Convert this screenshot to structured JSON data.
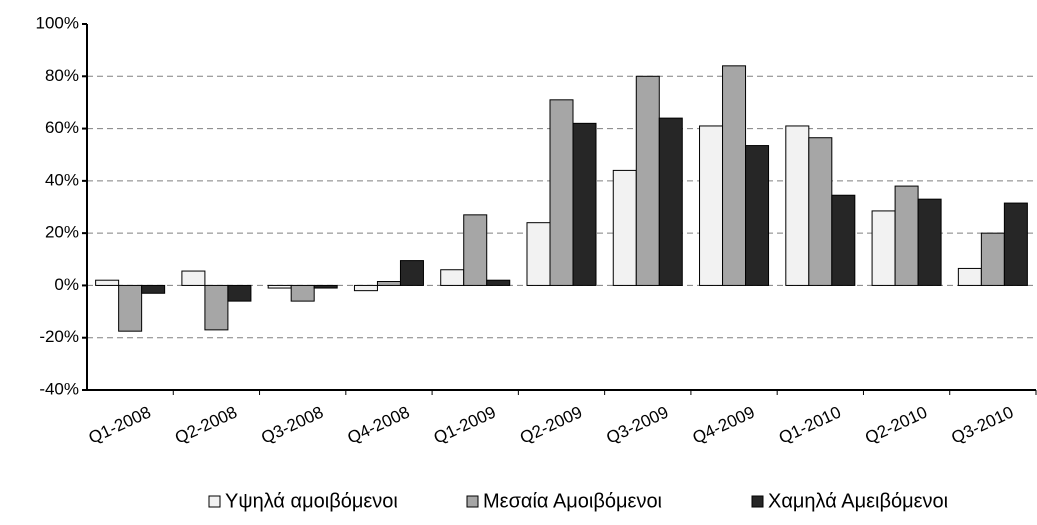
{
  "chart_data": {
    "type": "bar",
    "categories": [
      "Q1-2008",
      "Q2-2008",
      "Q3-2008",
      "Q4-2008",
      "Q1-2009",
      "Q2-2009",
      "Q3-2009",
      "Q4-2009",
      "Q1-2010",
      "Q2-2010",
      "Q3-2010"
    ],
    "series": [
      {
        "name": "Υψηλά αμοιβόμενοι",
        "color": "#f2f2f2",
        "values": [
          2,
          5.5,
          -1,
          -2,
          6,
          24,
          44,
          61,
          61,
          28.5,
          6.5
        ]
      },
      {
        "name": "Μεσαία Αμοιβόμενοι",
        "color": "#a6a6a6",
        "values": [
          -17.5,
          -17,
          -6,
          1.5,
          27,
          71,
          80,
          84,
          56.5,
          38,
          20
        ]
      },
      {
        "name": "Χαμηλά Αμειβόμενοι",
        "color": "#262626",
        "values": [
          -3,
          -6,
          -1,
          9.5,
          2,
          62,
          64,
          53.5,
          34.5,
          33,
          31.5
        ]
      }
    ],
    "ylim": [
      -40,
      100
    ],
    "yticks": [
      {
        "value": -40,
        "label": "-40%"
      },
      {
        "value": -20,
        "label": "-20%"
      },
      {
        "value": 0,
        "label": "0%"
      },
      {
        "value": 20,
        "label": "20%"
      },
      {
        "value": 40,
        "label": "40%"
      },
      {
        "value": 60,
        "label": "60%"
      },
      {
        "value": 80,
        "label": "80%"
      },
      {
        "value": 100,
        "label": "100%"
      }
    ],
    "grid": true
  }
}
